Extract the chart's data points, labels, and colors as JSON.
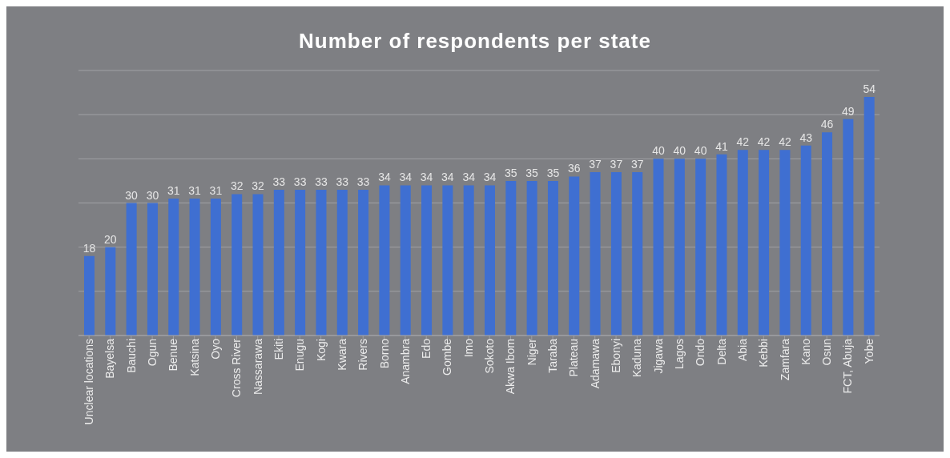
{
  "chart_data": {
    "type": "bar",
    "title": "Number of respondents per state",
    "categories": [
      "Unclear locations",
      "Bayelsa",
      "Bauchi",
      "Ogun",
      "Benue",
      "Katsina",
      "Oyo",
      "Cross River",
      "Nassarawa",
      "Ekiti",
      "Enugu",
      "Kogi",
      "Kwara",
      "Rivers",
      "Borno",
      "Anambra",
      "Edo",
      "Gombe",
      "Imo",
      "Sokoto",
      "Akwa Ibom",
      "Niger",
      "Taraba",
      "Plateau",
      "Adamawa",
      "Ebonyi",
      "Kaduna",
      "Jigawa",
      "Lagos",
      "Ondo",
      "Delta",
      "Abia",
      "Kebbi",
      "Zamfara",
      "Kano",
      "Osun",
      "FCT, Abuja",
      "Yobe"
    ],
    "values": [
      18,
      20,
      30,
      30,
      31,
      31,
      31,
      32,
      32,
      33,
      33,
      33,
      33,
      33,
      34,
      34,
      34,
      34,
      34,
      34,
      35,
      35,
      35,
      36,
      37,
      37,
      37,
      40,
      40,
      40,
      41,
      42,
      42,
      42,
      43,
      46,
      49,
      54
    ],
    "color": "#3f6fd1",
    "ylim": [
      0,
      60
    ],
    "grid": "y",
    "tick_labels": "x",
    "data_labels": true
  }
}
